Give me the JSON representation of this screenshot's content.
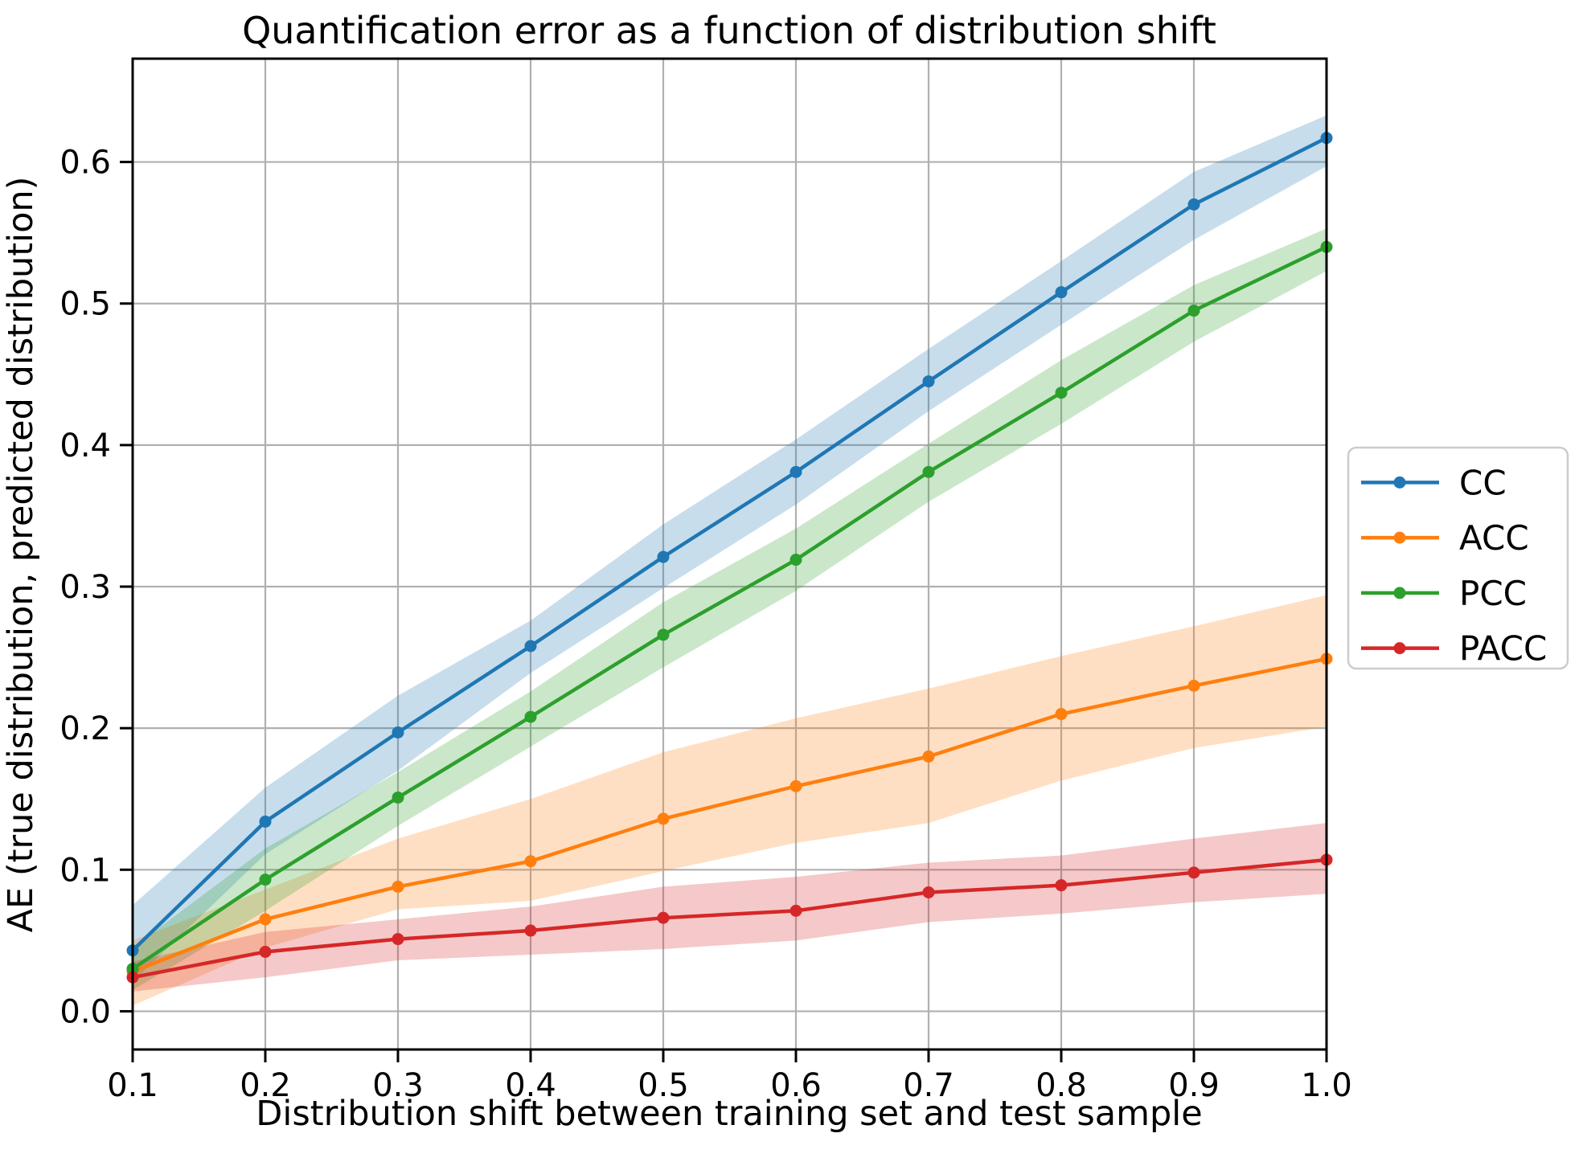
{
  "chart_data": {
    "type": "line",
    "title": "Quantification error as a function of distribution shift",
    "xlabel": "Distribution shift between training set and test sample",
    "ylabel": "AE (true distribution, predicted distribution)",
    "x": [
      0.1,
      0.2,
      0.3,
      0.4,
      0.5,
      0.6,
      0.7,
      0.8,
      0.9,
      1.0
    ],
    "xtick_labels": [
      "0.1",
      "0.2",
      "0.3",
      "0.4",
      "0.5",
      "0.6",
      "0.7",
      "0.8",
      "0.9",
      "1.0"
    ],
    "ytick_values": [
      0.0,
      0.1,
      0.2,
      0.3,
      0.4,
      0.5,
      0.6
    ],
    "ytick_labels": [
      "0.0",
      "0.1",
      "0.2",
      "0.3",
      "0.4",
      "0.5",
      "0.6"
    ],
    "xlim": [
      0.1,
      1.0
    ],
    "ylim": [
      -0.027,
      0.673
    ],
    "grid": true,
    "grid_color": "#b0b0b0",
    "band_opacity": 0.25,
    "legend_position": "outside-center-right",
    "legend_entries": [
      "CC",
      "ACC",
      "PCC",
      "PACC"
    ],
    "series": [
      {
        "name": "CC",
        "color": "#1f77b4",
        "values": [
          0.043,
          0.134,
          0.197,
          0.258,
          0.321,
          0.381,
          0.445,
          0.508,
          0.57,
          0.617
        ],
        "band_lower": [
          0.021,
          0.111,
          0.17,
          0.239,
          0.299,
          0.358,
          0.424,
          0.485,
          0.545,
          0.597
        ],
        "band_upper": [
          0.075,
          0.158,
          0.223,
          0.276,
          0.344,
          0.404,
          0.468,
          0.53,
          0.593,
          0.633
        ]
      },
      {
        "name": "ACC",
        "color": "#ff7f0e",
        "values": [
          0.028,
          0.065,
          0.088,
          0.106,
          0.136,
          0.159,
          0.18,
          0.21,
          0.23,
          0.249
        ],
        "band_lower": [
          0.004,
          0.045,
          0.072,
          0.078,
          0.099,
          0.119,
          0.133,
          0.163,
          0.186,
          0.201
        ],
        "band_upper": [
          0.05,
          0.086,
          0.122,
          0.15,
          0.183,
          0.207,
          0.228,
          0.251,
          0.272,
          0.294
        ]
      },
      {
        "name": "PCC",
        "color": "#2ca02c",
        "values": [
          0.03,
          0.093,
          0.151,
          0.208,
          0.266,
          0.319,
          0.381,
          0.437,
          0.495,
          0.54
        ],
        "band_lower": [
          0.015,
          0.071,
          0.131,
          0.187,
          0.243,
          0.297,
          0.36,
          0.415,
          0.473,
          0.523
        ],
        "band_upper": [
          0.045,
          0.115,
          0.169,
          0.226,
          0.289,
          0.341,
          0.401,
          0.46,
          0.513,
          0.553
        ]
      },
      {
        "name": "PACC",
        "color": "#d62728",
        "values": [
          0.024,
          0.042,
          0.051,
          0.057,
          0.066,
          0.071,
          0.084,
          0.089,
          0.098,
          0.107
        ],
        "band_lower": [
          0.014,
          0.024,
          0.036,
          0.04,
          0.044,
          0.05,
          0.063,
          0.069,
          0.077,
          0.083
        ],
        "band_upper": [
          0.035,
          0.056,
          0.065,
          0.074,
          0.088,
          0.095,
          0.105,
          0.11,
          0.122,
          0.133
        ]
      }
    ]
  }
}
